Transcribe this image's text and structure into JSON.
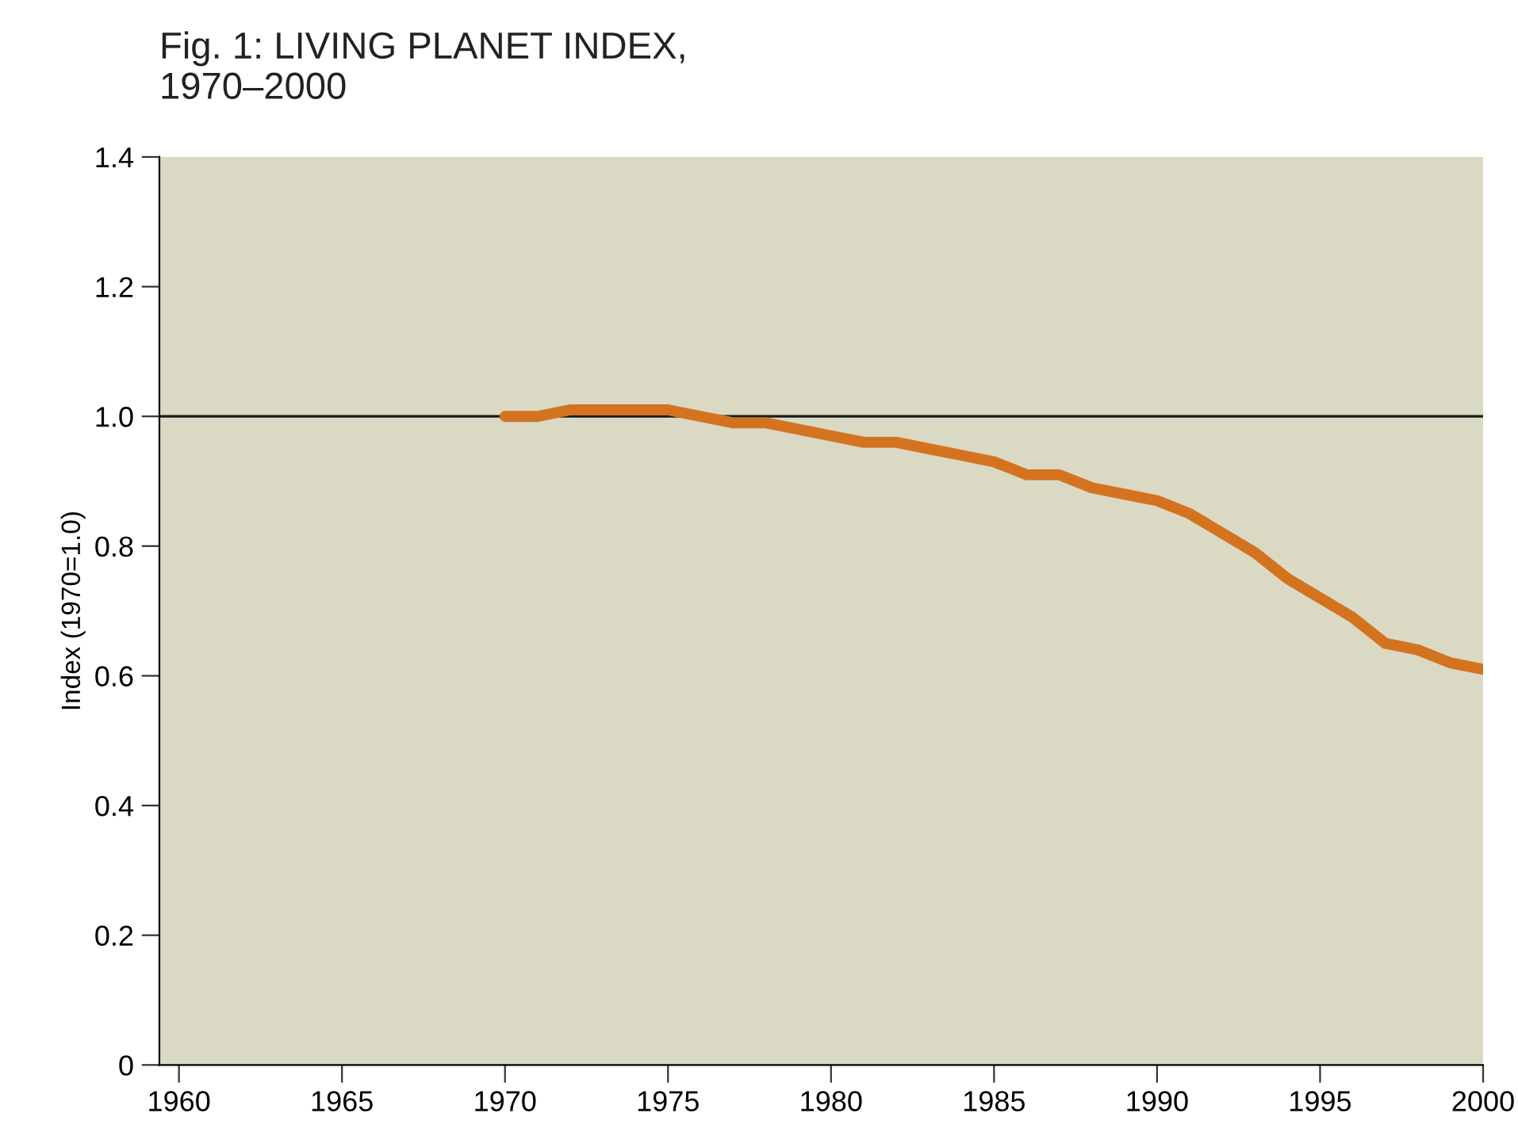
{
  "chart_data": {
    "type": "line",
    "title": "Fig. 1: LIVING PLANET INDEX,\n1970–2000",
    "ylabel": "Index (1970=1.0)",
    "x": [
      1970,
      1971,
      1972,
      1973,
      1974,
      1975,
      1976,
      1977,
      1978,
      1979,
      1980,
      1981,
      1982,
      1983,
      1984,
      1985,
      1986,
      1987,
      1988,
      1989,
      1990,
      1991,
      1992,
      1993,
      1994,
      1995,
      1996,
      1997,
      1998,
      1999,
      2000
    ],
    "series": [
      {
        "color": "#d4731f",
        "values": [
          1.0,
          1.0,
          1.01,
          1.01,
          1.01,
          1.01,
          1.0,
          0.99,
          0.99,
          0.98,
          0.97,
          0.96,
          0.96,
          0.95,
          0.94,
          0.93,
          0.91,
          0.91,
          0.89,
          0.88,
          0.87,
          0.85,
          0.82,
          0.79,
          0.75,
          0.72,
          0.69,
          0.65,
          0.64,
          0.62,
          0.61
        ]
      }
    ],
    "xlim": [
      1959.4,
      2000
    ],
    "xticks": [
      1960,
      1965,
      1970,
      1975,
      1980,
      1985,
      1990,
      1995,
      2000
    ],
    "ylim": [
      0,
      1.4
    ],
    "yticks": [
      {
        "value": 0,
        "label": "0"
      },
      {
        "value": 0.2,
        "label": "0.2"
      },
      {
        "value": 0.4,
        "label": "0.4"
      },
      {
        "value": 0.6,
        "label": "0.6"
      },
      {
        "value": 0.8,
        "label": "0.8"
      },
      {
        "value": 1.0,
        "label": "1.0"
      },
      {
        "value": 1.2,
        "label": "1.2"
      },
      {
        "value": 1.4,
        "label": "1.4"
      }
    ],
    "ref_lines": [
      {
        "axis": "y",
        "value": 1.0,
        "color": "#1a1a1a"
      }
    ],
    "grid": false,
    "legend": false,
    "marker": "none",
    "line_style": "solid"
  }
}
